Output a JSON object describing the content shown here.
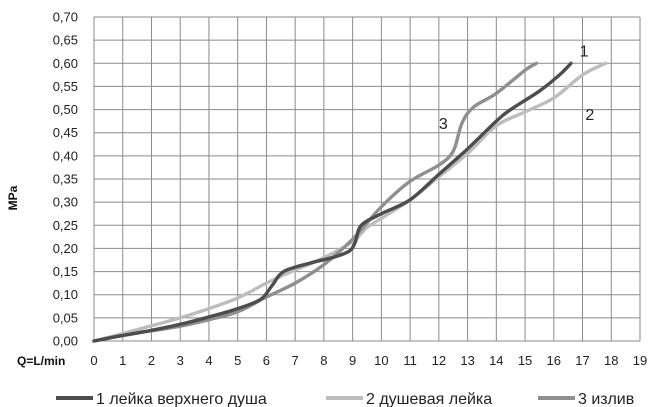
{
  "chart_data": {
    "type": "line",
    "ylabel": "MPa",
    "xlabel": "Q=L/min",
    "xlim": [
      0,
      19
    ],
    "ylim": [
      0,
      0.7
    ],
    "grid": true,
    "legend_placement": "bottom",
    "x_ticks": [
      "0",
      "1",
      "2",
      "3",
      "4",
      "5",
      "6",
      "7",
      "8",
      "9",
      "10",
      "11",
      "12",
      "13",
      "14",
      "15",
      "16",
      "17",
      "18",
      "19"
    ],
    "y_ticks": [
      "0,00",
      "0,05",
      "0,10",
      "0,15",
      "0,20",
      "0,25",
      "0,30",
      "0,35",
      "0,40",
      "0,45",
      "0,50",
      "0,55",
      "0,60",
      "0,65",
      "0,70"
    ],
    "series": [
      {
        "name": "1 лейка верхнего душа",
        "label": "1",
        "color": "#4d4d4d",
        "points": [
          [
            0,
            0
          ],
          [
            1,
            0.012
          ],
          [
            2,
            0.023
          ],
          [
            3,
            0.036
          ],
          [
            4,
            0.052
          ],
          [
            5,
            0.07
          ],
          [
            5.8,
            0.09
          ],
          [
            6.2,
            0.12
          ],
          [
            6.6,
            0.15
          ],
          [
            7.5,
            0.168
          ],
          [
            8.4,
            0.182
          ],
          [
            8.9,
            0.195
          ],
          [
            9.1,
            0.215
          ],
          [
            9.3,
            0.25
          ],
          [
            10,
            0.275
          ],
          [
            11,
            0.305
          ],
          [
            12,
            0.36
          ],
          [
            13,
            0.415
          ],
          [
            14,
            0.475
          ],
          [
            14.5,
            0.5
          ],
          [
            15.5,
            0.54
          ],
          [
            16.2,
            0.575
          ],
          [
            16.6,
            0.6
          ]
        ]
      },
      {
        "name": "2 душевая лейка",
        "label": "2",
        "color": "#bdbdbd",
        "points": [
          [
            0,
            0
          ],
          [
            1,
            0.016
          ],
          [
            2,
            0.033
          ],
          [
            3,
            0.05
          ],
          [
            4,
            0.07
          ],
          [
            5,
            0.093
          ],
          [
            6,
            0.125
          ],
          [
            6.8,
            0.148
          ],
          [
            8,
            0.18
          ],
          [
            9,
            0.215
          ],
          [
            9.5,
            0.245
          ],
          [
            10,
            0.265
          ],
          [
            11,
            0.305
          ],
          [
            12,
            0.355
          ],
          [
            13,
            0.405
          ],
          [
            14,
            0.465
          ],
          [
            15,
            0.495
          ],
          [
            16,
            0.525
          ],
          [
            17,
            0.575
          ],
          [
            17.8,
            0.6
          ]
        ]
      },
      {
        "name": "3 излив",
        "label": "3",
        "color": "#8f8f8f",
        "points": [
          [
            0,
            0
          ],
          [
            1,
            0.012
          ],
          [
            2,
            0.022
          ],
          [
            3,
            0.032
          ],
          [
            4,
            0.046
          ],
          [
            5,
            0.063
          ],
          [
            6,
            0.095
          ],
          [
            7,
            0.125
          ],
          [
            8,
            0.165
          ],
          [
            9,
            0.22
          ],
          [
            10,
            0.29
          ],
          [
            11,
            0.345
          ],
          [
            12,
            0.38
          ],
          [
            12.5,
            0.41
          ],
          [
            12.8,
            0.47
          ],
          [
            13.2,
            0.505
          ],
          [
            14,
            0.535
          ],
          [
            15,
            0.585
          ],
          [
            15.4,
            0.6
          ]
        ]
      }
    ]
  }
}
